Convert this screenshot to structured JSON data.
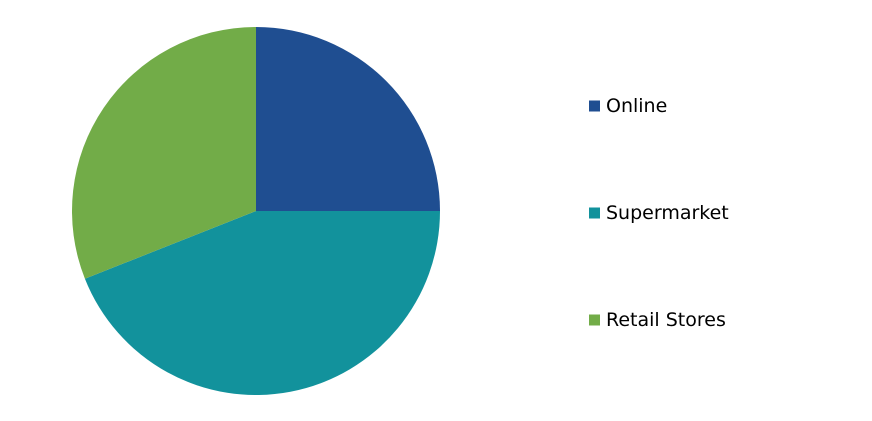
{
  "chart_data": {
    "type": "pie",
    "title": "",
    "slices": [
      {
        "label": "Online",
        "value": 25,
        "color": "#1f4e91"
      },
      {
        "label": "Supermarket",
        "value": 44,
        "color": "#12929c"
      },
      {
        "label": "Retail Stores",
        "value": 31,
        "color": "#72ac48"
      }
    ],
    "legend_position": "right"
  }
}
